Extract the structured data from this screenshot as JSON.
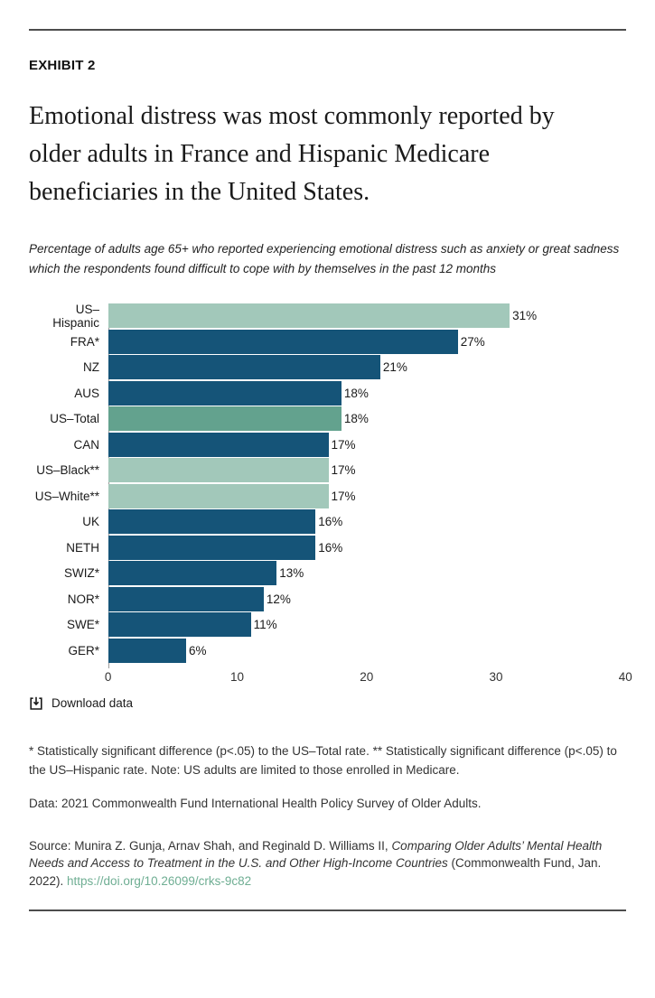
{
  "header": {
    "exhibit": "EXHIBIT 2",
    "title_lines": [
      "Emotional distress was most commonly reported by",
      "older adults in France and Hispanic Medicare",
      "beneficiaries in the United States."
    ]
  },
  "subtitle_lines": [
    "Percentage of adults age 65+ who reported experiencing emotional distress such as anxiety or great sadness",
    "which the respondents found difficult to cope with by themselves in the past 12 months"
  ],
  "chart_data": {
    "type": "bar",
    "orientation": "horizontal",
    "title": "",
    "xlabel": "",
    "ylabel": "",
    "xlim": [
      0,
      40
    ],
    "x_ticks": [
      0,
      10,
      20,
      30,
      40
    ],
    "grid": false,
    "legend": false,
    "categories": [
      "US–Hispanic",
      "FRA*",
      "NZ",
      "AUS",
      "US–Total",
      "CAN",
      "US–Black**",
      "US–White**",
      "UK",
      "NETH",
      "SWIZ*",
      "NOR*",
      "SWE*",
      "GER*"
    ],
    "values": [
      31,
      27,
      21,
      18,
      18,
      17,
      17,
      17,
      16,
      16,
      13,
      12,
      11,
      6
    ],
    "value_labels": [
      "31%",
      "27%",
      "21%",
      "18%",
      "18%",
      "17%",
      "17%",
      "17%",
      "16%",
      "16%",
      "13%",
      "12%",
      "11%",
      "6%"
    ],
    "palette": {
      "dark": "#155478",
      "light": "#a2c8ba",
      "medium": "#63a28e"
    },
    "items": [
      {
        "label": "US–Hispanic",
        "value": 31,
        "display": "31%",
        "color": "light"
      },
      {
        "label": "FRA*",
        "value": 27,
        "display": "27%",
        "color": "dark"
      },
      {
        "label": "NZ",
        "value": 21,
        "display": "21%",
        "color": "dark"
      },
      {
        "label": "AUS",
        "value": 18,
        "display": "18%",
        "color": "dark"
      },
      {
        "label": "US–Total",
        "value": 18,
        "display": "18%",
        "color": "medium"
      },
      {
        "label": "CAN",
        "value": 17,
        "display": "17%",
        "color": "dark"
      },
      {
        "label": "US–Black**",
        "value": 17,
        "display": "17%",
        "color": "light"
      },
      {
        "label": "US–White**",
        "value": 17,
        "display": "17%",
        "color": "light"
      },
      {
        "label": "UK",
        "value": 16,
        "display": "16%",
        "color": "dark"
      },
      {
        "label": "NETH",
        "value": 16,
        "display": "16%",
        "color": "dark"
      },
      {
        "label": "SWIZ*",
        "value": 13,
        "display": "13%",
        "color": "dark"
      },
      {
        "label": "NOR*",
        "value": 12,
        "display": "12%",
        "color": "dark"
      },
      {
        "label": "SWE*",
        "value": 11,
        "display": "11%",
        "color": "dark"
      },
      {
        "label": "GER*",
        "value": 6,
        "display": "6%",
        "color": "dark"
      }
    ]
  },
  "download": {
    "label": "Download data"
  },
  "notes": {
    "footnote": "* Statistically significant difference (p<.05) to the US–Total rate. ** Statistically significant difference (p<.05) to the US–Hispanic rate. Note: US adults are limited to those enrolled in Medicare.",
    "data_line": "Data: 2021 Commonwealth Fund International Health Policy Survey of Older Adults."
  },
  "source": {
    "prefix": "Source: Munira Z. Gunja, Arnav Shah, and Reginald D. Williams II, ",
    "italic_title": "Comparing Older Adults’ Mental Health Needs and Access to Treatment in the U.S. and Other High-Income Countries",
    "suffix": " (Commonwealth Fund, Jan. 2022). ",
    "link": "https://doi.org/10.26099/crks-9c82"
  },
  "colors": {
    "bar_dark": "#155478",
    "bar_light": "#a2c8ba",
    "bar_medium": "#63a28e",
    "link_green": "#6fae93",
    "rule_gray": "#4d4d4d",
    "axis_gray": "#9a9a9a"
  }
}
